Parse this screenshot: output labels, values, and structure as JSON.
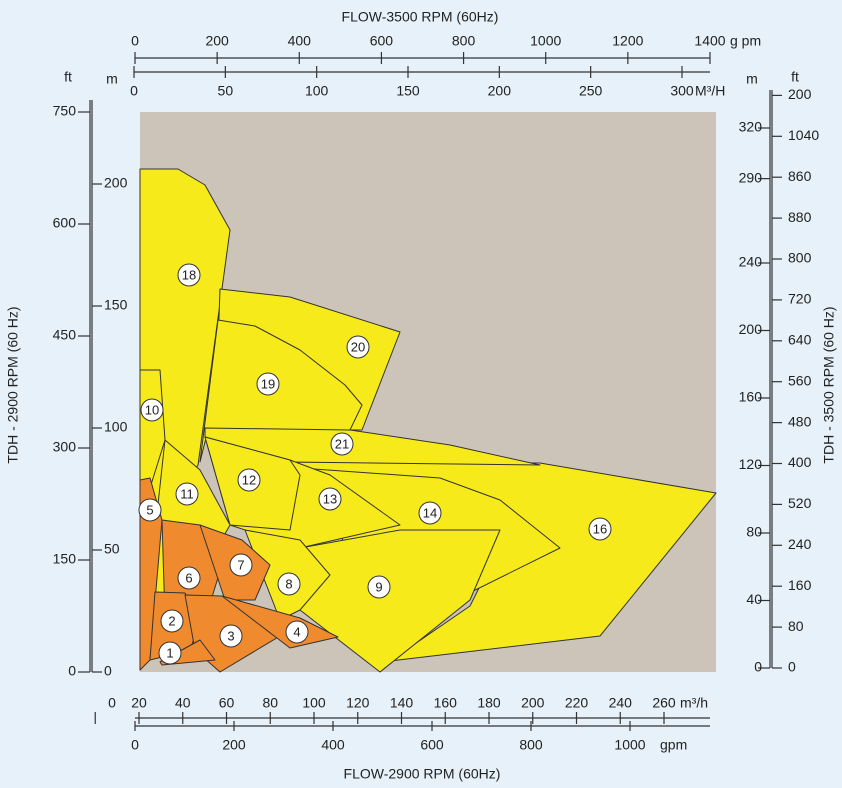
{
  "chart_data": {
    "type": "region-map",
    "top_title": "FLOW-3500 RPM (60Hz)",
    "bottom_title": "FLOW-2900 RPM (60Hz)",
    "left_title": "TDH - 2900 RPM (60 Hz)",
    "right_title": "TDH - 3500 RPM (60 Hz)",
    "background_color": "#cdc4b9",
    "top_gpm": {
      "unit": "g pm",
      "xlim": [
        0,
        1400
      ],
      "xticks": [
        0,
        200,
        400,
        600,
        800,
        1000,
        1200,
        1400
      ]
    },
    "top_m3h": {
      "unit": "M³/H",
      "xlim": [
        0,
        300
      ],
      "xticks": [
        0,
        50,
        100,
        150,
        200,
        250,
        300
      ]
    },
    "bottom_m3h": {
      "unit": "m³/h",
      "xlim": [
        20,
        260
      ],
      "xticks": [
        0,
        20,
        40,
        60,
        80,
        100,
        120,
        140,
        160,
        180,
        200,
        220,
        240,
        260
      ]
    },
    "bottom_gpm": {
      "unit": "gpm",
      "xlim": [
        0,
        1000
      ],
      "xticks": [
        0,
        200,
        400,
        600,
        800,
        1000
      ]
    },
    "left_ft": {
      "unit": "ft",
      "ylim": [
        0,
        750
      ],
      "yticks": [
        0,
        150,
        300,
        450,
        600,
        750
      ]
    },
    "left_m": {
      "unit": "m",
      "ylim": [
        0,
        200
      ],
      "yticks": [
        0,
        50,
        100,
        150,
        200
      ]
    },
    "right_m": {
      "unit": "m",
      "ylim": [
        0,
        320
      ],
      "yticks": [
        0,
        40,
        80,
        120,
        160,
        200,
        240,
        290,
        320
      ]
    },
    "right_ft": {
      "unit": "ft",
      "labels": [
        "0",
        "80",
        "160",
        "240",
        "520",
        "400",
        "480",
        "560",
        "640",
        "720",
        "800",
        "880",
        "860",
        "1040",
        "200"
      ]
    },
    "regions": [
      {
        "label": "18",
        "color": "#f7ea1a"
      },
      {
        "label": "20",
        "color": "#f7ea1a"
      },
      {
        "label": "19",
        "color": "#f7ea1a"
      },
      {
        "label": "16",
        "color": "#f7ea1a"
      },
      {
        "label": "21",
        "color": "#f7ea1a"
      },
      {
        "label": "14",
        "color": "#f7ea1a"
      },
      {
        "label": "13",
        "color": "#f7ea1a"
      },
      {
        "label": "12",
        "color": "#f7ea1a"
      },
      {
        "label": "9",
        "color": "#f7ea1a"
      },
      {
        "label": "8",
        "color": "#f7ea1a"
      },
      {
        "label": "11",
        "color": "#f7ea1a"
      },
      {
        "label": "10",
        "color": "#f7ea1a"
      },
      {
        "label": "5",
        "color": "#ef8a2e"
      },
      {
        "label": "6",
        "color": "#ef8a2e"
      },
      {
        "label": "7",
        "color": "#ef8a2e"
      },
      {
        "label": "2",
        "color": "#ef8a2e"
      },
      {
        "label": "3",
        "color": "#ef8a2e"
      },
      {
        "label": "4",
        "color": "#ef8a2e"
      },
      {
        "label": "1",
        "color": "#ef8a2e"
      }
    ]
  }
}
